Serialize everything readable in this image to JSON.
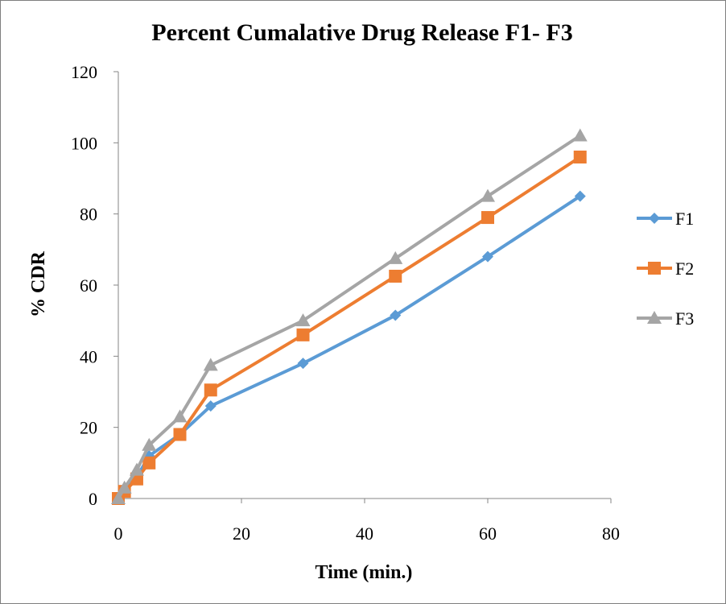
{
  "chart_data": {
    "type": "line",
    "title": "Percent Cumalative  Drug Release F1- F3",
    "xlabel": "Time (min.)",
    "ylabel": "% CDR",
    "xlim": [
      0,
      80
    ],
    "ylim": [
      0,
      120
    ],
    "xticks": [
      0,
      20,
      40,
      60,
      80
    ],
    "yticks": [
      0,
      20,
      40,
      60,
      80,
      100,
      120
    ],
    "grid": false,
    "legend_position": "right",
    "x": [
      0,
      1,
      3,
      5,
      10,
      15,
      30,
      45,
      60,
      75
    ],
    "series": [
      {
        "name": "F1",
        "color": "#5b9bd5",
        "marker": "diamond",
        "values": [
          0,
          2,
          6,
          12,
          18,
          26,
          38,
          51.5,
          68,
          85
        ]
      },
      {
        "name": "F2",
        "color": "#ed7d31",
        "marker": "square",
        "values": [
          0,
          2,
          5.5,
          10,
          18,
          30.5,
          46,
          62.5,
          79,
          96
        ]
      },
      {
        "name": "F3",
        "color": "#a5a5a5",
        "marker": "triangle",
        "values": [
          0,
          3,
          8,
          15,
          23,
          37.5,
          50,
          67.5,
          85,
          102
        ]
      }
    ]
  }
}
